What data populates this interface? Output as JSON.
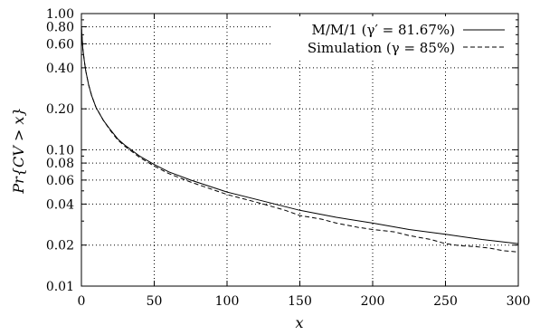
{
  "chart_data": {
    "type": "line",
    "xlabel": "x",
    "ylabel": "Pr{CV > x}",
    "xlim": [
      0,
      300
    ],
    "ylim": [
      0.01,
      1.0
    ],
    "yscale": "log",
    "grid": true,
    "legend_position": "top-right",
    "x_ticks": [
      0,
      50,
      100,
      150,
      200,
      250,
      300
    ],
    "x_tick_labels": [
      "0",
      "50",
      "100",
      "150",
      "200",
      "250",
      "300"
    ],
    "y_ticks": [
      0.01,
      0.02,
      0.04,
      0.06,
      0.08,
      0.1,
      0.2,
      0.4,
      0.6,
      0.8,
      1.0
    ],
    "y_tick_labels": [
      "0.01",
      "0.02",
      "0.04",
      "0.06",
      "0.08",
      "0.10",
      "0.20",
      "0.40",
      "0.60",
      "0.80",
      "1.00"
    ],
    "series": [
      {
        "name": "M/M/1 (γ′ = 81.67%)",
        "style": "solid",
        "color": "#000000",
        "x": [
          0,
          1,
          2,
          3,
          5,
          7,
          10,
          15,
          20,
          25,
          30,
          40,
          50,
          60,
          75,
          100,
          125,
          150,
          175,
          200,
          225,
          250,
          275,
          300
        ],
        "y": [
          0.8,
          0.55,
          0.45,
          0.38,
          0.3,
          0.25,
          0.205,
          0.165,
          0.14,
          0.12,
          0.108,
          0.09,
          0.078,
          0.069,
          0.06,
          0.049,
          0.042,
          0.036,
          0.032,
          0.029,
          0.026,
          0.024,
          0.022,
          0.0205
        ]
      },
      {
        "name": "Simulation (γ = 85%)",
        "style": "dashed",
        "color": "#000000",
        "x": [
          0,
          1,
          2,
          3,
          5,
          7,
          10,
          15,
          20,
          25,
          30,
          40,
          50,
          60,
          75,
          100,
          125,
          140,
          150,
          165,
          175,
          190,
          200,
          215,
          225,
          240,
          250,
          260,
          270,
          280,
          290,
          300
        ],
        "y": [
          0.8,
          0.55,
          0.45,
          0.38,
          0.3,
          0.25,
          0.205,
          0.165,
          0.138,
          0.118,
          0.106,
          0.088,
          0.076,
          0.067,
          0.058,
          0.047,
          0.04,
          0.036,
          0.033,
          0.031,
          0.029,
          0.027,
          0.026,
          0.025,
          0.0235,
          0.022,
          0.0205,
          0.0198,
          0.0195,
          0.019,
          0.0182,
          0.0178
        ]
      }
    ]
  }
}
